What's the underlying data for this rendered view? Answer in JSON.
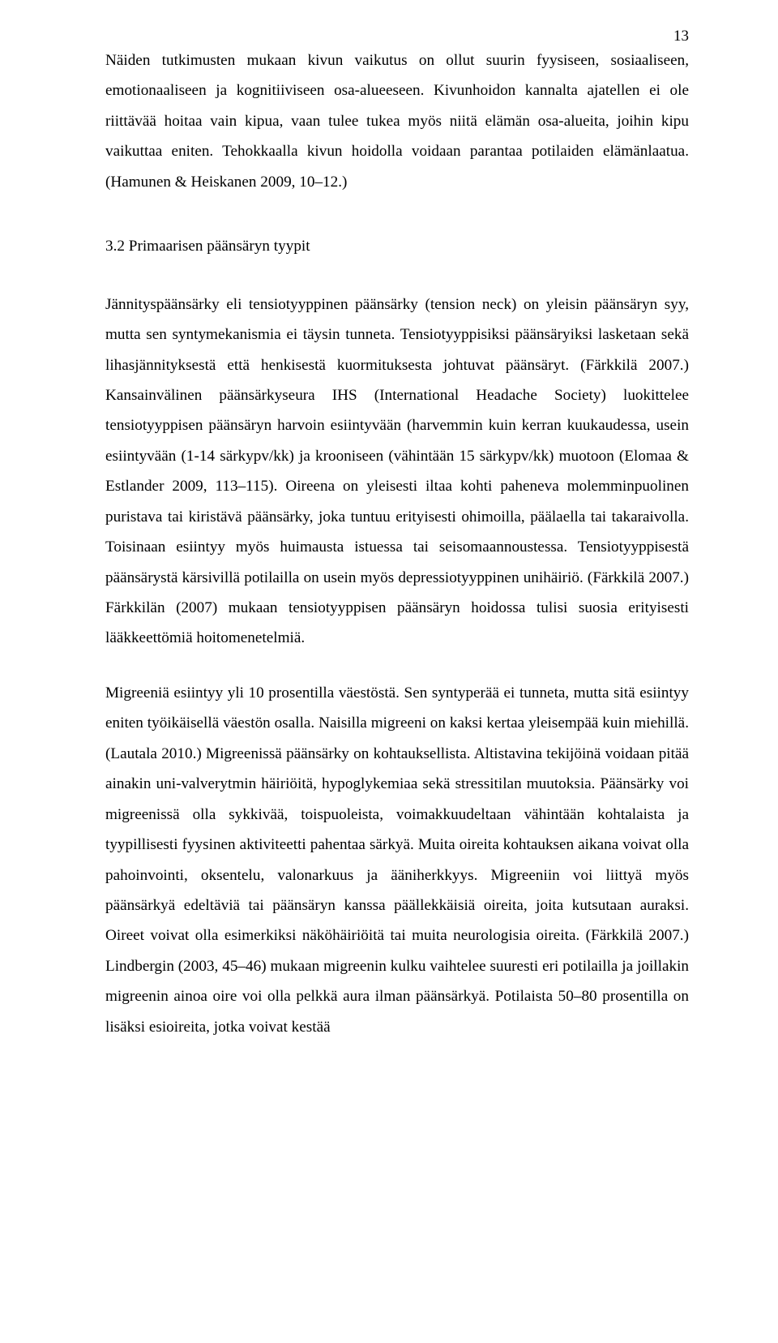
{
  "pageNumber": "13",
  "paragraphs": {
    "p1": "Näiden tutkimusten mukaan kivun vaikutus on ollut suurin fyysiseen, sosiaaliseen, emotionaaliseen ja kognitiiviseen osa-alueeseen. Kivunhoidon kannalta ajatellen ei ole riittävää hoitaa vain kipua, vaan tulee tukea myös niitä elämän osa-alueita, joihin kipu vaikuttaa eniten. Tehokkaalla kivun hoidolla voidaan parantaa potilaiden elämänlaatua. (Hamunen & Heiskanen 2009, 10–12.)",
    "heading": "3.2 Primaarisen päänsäryn tyypit",
    "p2": "Jännityspäänsärky eli tensiotyyppinen päänsärky (tension neck) on yleisin päänsäryn syy, mutta sen syntymekanismia ei täysin tunneta. Tensiotyyppisiksi päänsäryiksi lasketaan sekä lihasjännityksestä että henkisestä kuormituksesta johtuvat päänsäryt. (Färkkilä 2007.) Kansainvälinen päänsärkyseura IHS (International Headache Society) luokittelee tensiotyyppisen päänsäryn harvoin esiintyvään (harvemmin kuin kerran kuukaudessa, usein esiintyvään (1-14 särkypv/kk) ja krooniseen (vähintään 15 särkypv/kk) muotoon (Elomaa & Estlander 2009, 113–115). Oireena on yleisesti iltaa kohti paheneva molemminpuolinen puristava tai kiristävä päänsärky, joka tuntuu erityisesti ohimoilla, päälaella tai takaraivolla. Toisinaan esiintyy myös huimausta istuessa tai seisomaannoustessa. Tensiotyyppisestä päänsärystä kärsivillä potilailla on usein myös depressiotyyppinen unihäiriö. (Färkkilä 2007.) Färkkilän (2007) mukaan tensiotyyppisen päänsäryn hoidossa tulisi suosia erityisesti lääkkeettömiä hoitomenetelmiä.",
    "p3": "Migreeniä esiintyy yli 10 prosentilla väestöstä. Sen syntyperää ei tunneta, mutta sitä esiintyy eniten työikäisellä väestön osalla. Naisilla migreeni on kaksi kertaa yleisempää kuin miehillä. (Lautala 2010.) Migreenissä päänsärky on kohtauksellista. Altistavina tekijöinä voidaan pitää ainakin uni-valverytmin häiriöitä, hypoglykemiaa sekä stressitilan muutoksia. Päänsärky voi migreenissä olla sykkivää, toispuoleista, voimakkuudeltaan vähintään kohtalaista ja tyypillisesti fyysinen aktiviteetti pahentaa särkyä. Muita oireita kohtauksen aikana voivat olla pahoinvointi, oksentelu, valonarkuus ja ääniherkkyys. Migreeniin voi liittyä myös päänsärkyä edeltäviä tai päänsäryn kanssa päällekkäisiä oireita, joita kutsutaan auraksi. Oireet voivat olla esimerkiksi näköhäiriöitä tai muita neurologisia oireita. (Färkkilä 2007.) Lindbergin (2003, 45–46) mukaan migreenin kulku vaihtelee suuresti eri potilailla ja joillakin migreenin ainoa oire voi olla pelkkä aura ilman päänsärkyä. Potilaista 50–80 prosentilla on lisäksi esioireita, jotka voivat kestää"
  }
}
